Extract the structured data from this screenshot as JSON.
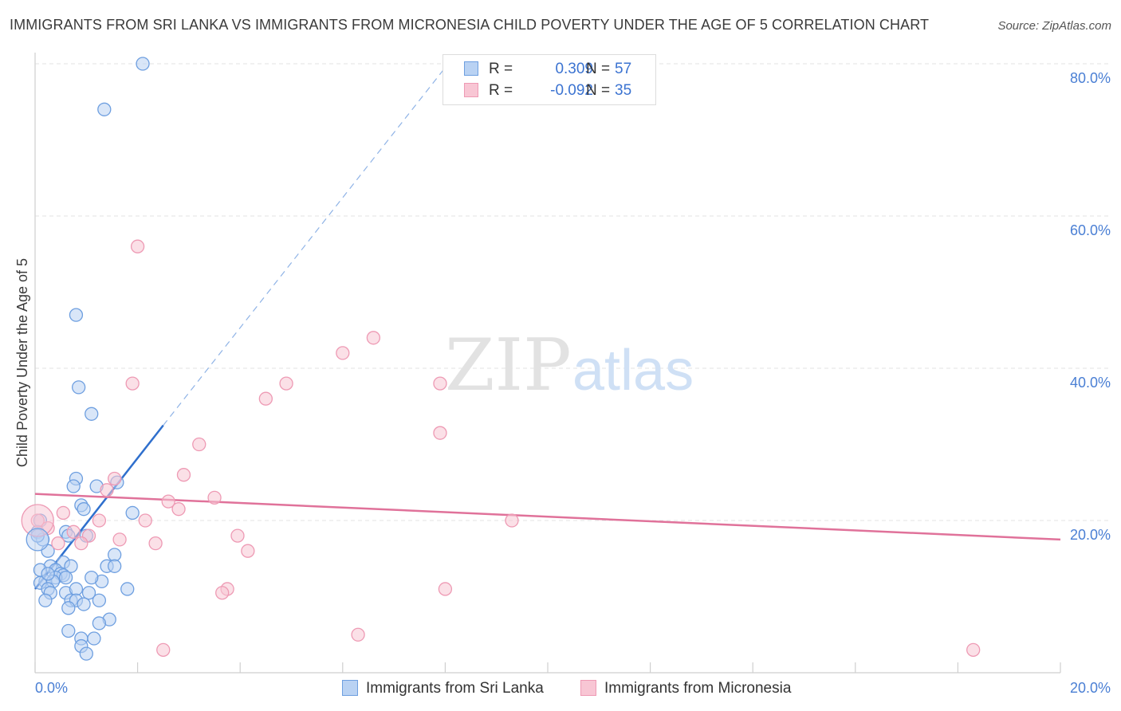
{
  "header": {
    "title": "IMMIGRANTS FROM SRI LANKA VS IMMIGRANTS FROM MICRONESIA CHILD POVERTY UNDER THE AGE OF 5 CORRELATION CHART",
    "source": "Source: ZipAtlas.com"
  },
  "watermark": {
    "zip": "ZIP",
    "atlas": "atlas"
  },
  "legend": {
    "r_label": "R =",
    "n_label": "N =",
    "series": [
      {
        "name": "Immigrants from Sri Lanka",
        "r": "0.309",
        "n": "57"
      },
      {
        "name": "Immigrants from Micronesia",
        "r": "-0.092",
        "n": "35"
      }
    ]
  },
  "colors": {
    "blue_fill": "#b9d2f3",
    "blue_stroke": "#6e9fe0",
    "blue_line": "#2f6fcd",
    "pink_fill": "#f8c6d4",
    "pink_stroke": "#ee9ab4",
    "pink_line": "#e0729a",
    "tick": "#4a7fd4",
    "grid": "#e3e3e3"
  },
  "chart_data": {
    "type": "scatter",
    "title": "IMMIGRANTS FROM SRI LANKA VS IMMIGRANTS FROM MICRONESIA CHILD POVERTY UNDER THE AGE OF 5 CORRELATION CHART",
    "xlabel": "",
    "ylabel": "Child Poverty Under the Age of 5",
    "xlim": [
      0,
      20
    ],
    "ylim": [
      0,
      80
    ],
    "x_tick_labels": [
      "0.0%",
      "20.0%"
    ],
    "y_ticks": [
      20,
      40,
      60,
      80
    ],
    "y_tick_labels": [
      "20.0%",
      "40.0%",
      "60.0%",
      "80.0%"
    ],
    "grid": true,
    "series": [
      {
        "name": "Immigrants from Sri Lanka",
        "r": 0.309,
        "n": 57,
        "trend": {
          "x0": 0.0,
          "y0": 11.0,
          "x1": 2.5,
          "y1": 32.5,
          "dashed_to_x": 8.0,
          "dashed_to_y": 79.5
        },
        "points": [
          [
            2.1,
            80.0
          ],
          [
            1.35,
            74.0
          ],
          [
            0.8,
            47.0
          ],
          [
            0.85,
            37.5
          ],
          [
            1.1,
            34.0
          ],
          [
            0.8,
            25.5
          ],
          [
            0.75,
            24.5
          ],
          [
            1.2,
            24.5
          ],
          [
            1.6,
            25.0
          ],
          [
            0.9,
            22.0
          ],
          [
            0.95,
            21.5
          ],
          [
            1.9,
            21.0
          ],
          [
            0.1,
            20.0
          ],
          [
            0.05,
            18.5
          ],
          [
            0.15,
            17.5
          ],
          [
            0.6,
            18.5
          ],
          [
            0.65,
            18.0
          ],
          [
            1.0,
            18.0
          ],
          [
            0.25,
            16.0
          ],
          [
            1.55,
            15.5
          ],
          [
            0.55,
            14.5
          ],
          [
            0.3,
            14.0
          ],
          [
            0.7,
            14.0
          ],
          [
            1.4,
            14.0
          ],
          [
            1.55,
            14.0
          ],
          [
            0.1,
            13.5
          ],
          [
            0.4,
            13.5
          ],
          [
            0.5,
            13.0
          ],
          [
            0.55,
            12.8
          ],
          [
            0.4,
            12.5
          ],
          [
            0.6,
            12.5
          ],
          [
            0.2,
            12.0
          ],
          [
            0.1,
            11.8
          ],
          [
            0.35,
            12.0
          ],
          [
            1.3,
            12.0
          ],
          [
            0.25,
            11.0
          ],
          [
            0.3,
            10.5
          ],
          [
            0.6,
            10.5
          ],
          [
            0.8,
            11.0
          ],
          [
            1.05,
            10.5
          ],
          [
            1.8,
            11.0
          ],
          [
            0.7,
            9.5
          ],
          [
            0.8,
            9.5
          ],
          [
            0.95,
            9.0
          ],
          [
            1.25,
            9.5
          ],
          [
            0.2,
            9.5
          ],
          [
            0.65,
            8.5
          ],
          [
            1.45,
            7.0
          ],
          [
            1.25,
            6.5
          ],
          [
            0.65,
            5.5
          ],
          [
            0.9,
            4.5
          ],
          [
            1.15,
            4.5
          ],
          [
            0.9,
            3.5
          ],
          [
            1.0,
            2.5
          ],
          [
            0.05,
            18.0
          ],
          [
            0.25,
            13.0
          ],
          [
            1.1,
            12.5
          ]
        ]
      },
      {
        "name": "Immigrants from Micronesia",
        "r": -0.092,
        "n": 35,
        "trend": {
          "x0": 0.0,
          "y0": 23.5,
          "x1": 20.0,
          "y1": 17.5
        },
        "points": [
          [
            2.0,
            56.0
          ],
          [
            6.6,
            44.0
          ],
          [
            6.0,
            42.0
          ],
          [
            1.9,
            38.0
          ],
          [
            4.9,
            38.0
          ],
          [
            7.9,
            38.0
          ],
          [
            4.5,
            36.0
          ],
          [
            7.9,
            31.5
          ],
          [
            3.2,
            30.0
          ],
          [
            1.55,
            25.5
          ],
          [
            2.9,
            26.0
          ],
          [
            1.4,
            24.0
          ],
          [
            3.5,
            23.0
          ],
          [
            2.6,
            22.5
          ],
          [
            2.8,
            21.5
          ],
          [
            0.55,
            21.0
          ],
          [
            2.15,
            20.0
          ],
          [
            1.25,
            20.0
          ],
          [
            9.3,
            20.0
          ],
          [
            0.05,
            20.0
          ],
          [
            0.25,
            19.0
          ],
          [
            0.75,
            18.5
          ],
          [
            1.05,
            18.0
          ],
          [
            1.65,
            17.5
          ],
          [
            3.95,
            18.0
          ],
          [
            0.45,
            17.0
          ],
          [
            0.9,
            17.0
          ],
          [
            2.35,
            17.0
          ],
          [
            4.15,
            16.0
          ],
          [
            3.75,
            11.0
          ],
          [
            3.65,
            10.5
          ],
          [
            8.0,
            11.0
          ],
          [
            6.3,
            5.0
          ],
          [
            2.5,
            3.0
          ],
          [
            18.3,
            3.0
          ]
        ]
      }
    ]
  }
}
